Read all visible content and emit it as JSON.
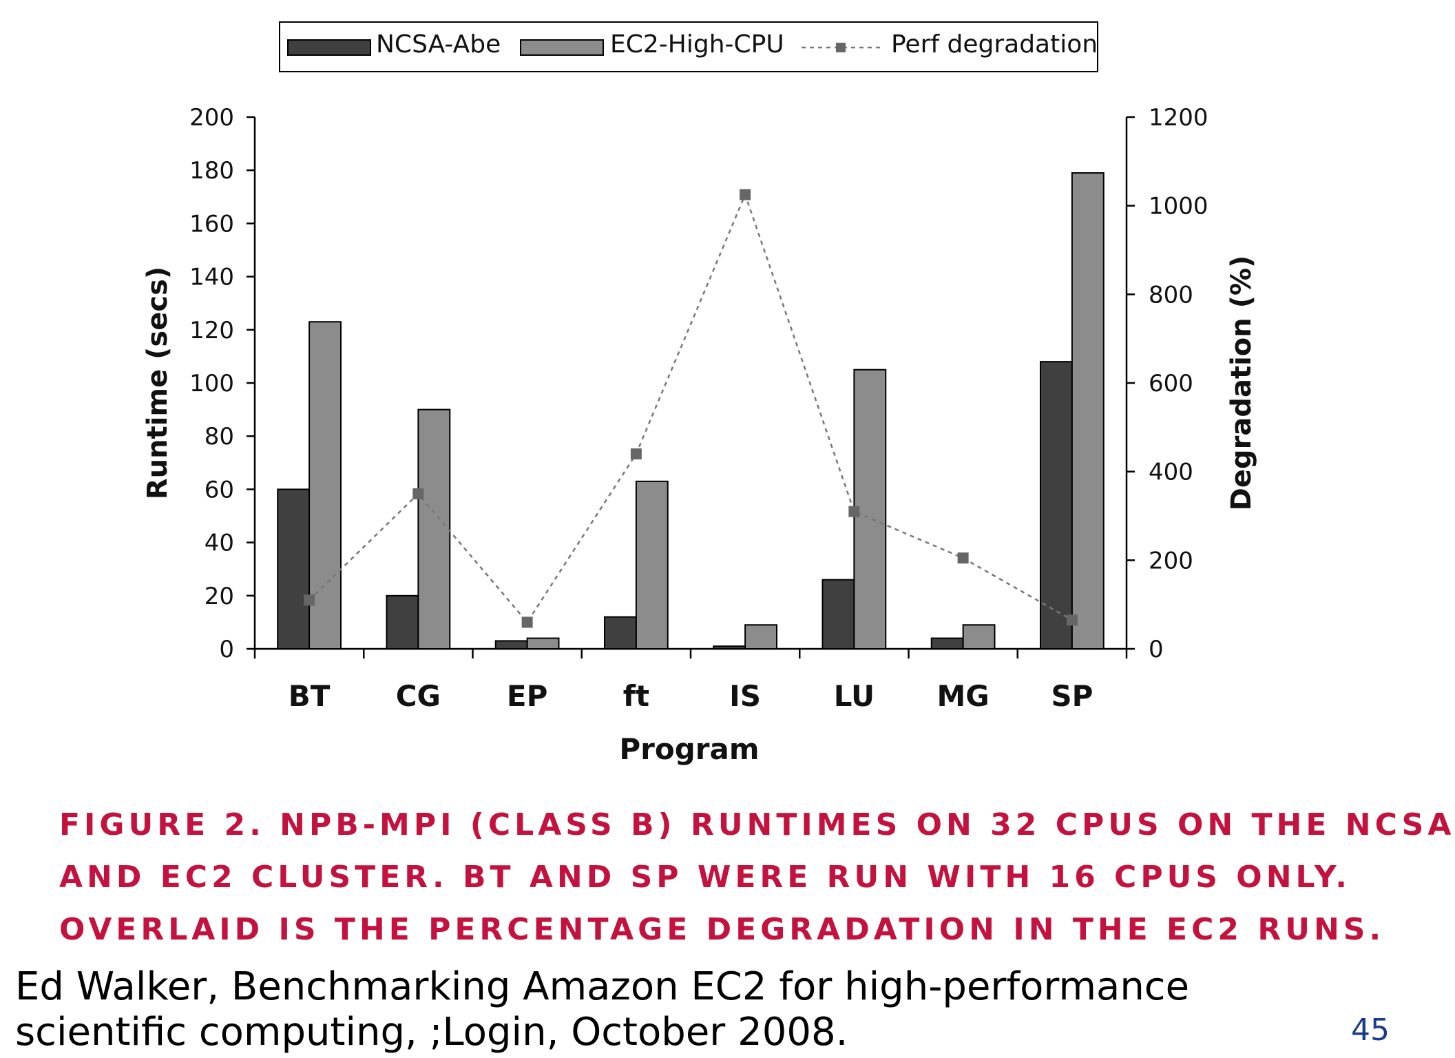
{
  "chart_data": {
    "type": "bar",
    "categories": [
      "BT",
      "CG",
      "EP",
      "ft",
      "IS",
      "LU",
      "MG",
      "SP"
    ],
    "series": [
      {
        "name": "NCSA-Abe",
        "type": "bar",
        "axis": "left",
        "color": "#404040",
        "values": [
          60,
          20,
          3,
          12,
          1,
          26,
          4,
          108
        ]
      },
      {
        "name": "EC2-High-CPU",
        "type": "bar",
        "axis": "left",
        "color": "#8c8c8c",
        "values": [
          123,
          90,
          4,
          63,
          9,
          105,
          9,
          179
        ]
      },
      {
        "name": "Perf degradation",
        "type": "line",
        "axis": "right",
        "color": "#777777",
        "line_style": "dashed",
        "marker": "square",
        "values": [
          110,
          350,
          60,
          440,
          1025,
          310,
          205,
          65
        ]
      }
    ],
    "xlabel": "Program",
    "ylabel": "Runtime (secs)",
    "y2label": "Degradation (%)",
    "ylim": [
      0,
      200
    ],
    "y2lim": [
      0,
      1200
    ],
    "yticks": [
      "0",
      "20",
      "40",
      "60",
      "80",
      "100",
      "120",
      "140",
      "160",
      "180",
      "200"
    ],
    "y2ticks": [
      "0",
      "200",
      "400",
      "600",
      "800",
      "1000",
      "1200"
    ],
    "legend_position": "top-center",
    "grid": false
  },
  "caption": {
    "line1": "FIGURE 2. NPB-MPI (CLASS B) RUNTIMES ON 32 CPUS ON THE NCSA",
    "line2": "AND EC2 CLUSTER. BT AND SP WERE RUN WITH 16 CPUS ONLY.",
    "line3": "OVERLAID IS THE PERCENTAGE DEGRADATION IN THE EC2 RUNS."
  },
  "citation": {
    "line1": "Ed Walker, Benchmarking Amazon EC2 for high-performance",
    "line2": "scientific computing, ;Login, October 2008."
  },
  "page_number": "45"
}
